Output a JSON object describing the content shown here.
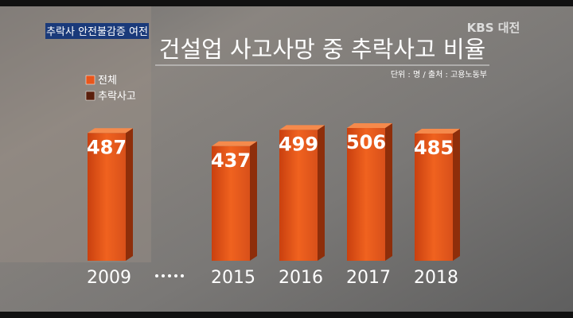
{
  "caption": "추락사 안전불감증 여전",
  "logo": "KBS 대전",
  "chart_data": {
    "type": "bar",
    "title": "건설업 사고사망 중 추락사고 비율",
    "note": "단위 : 명 / 출처 : 고용노동부",
    "categories": [
      "2009",
      "2015",
      "2016",
      "2017",
      "2018"
    ],
    "values": [
      487,
      437,
      499,
      506,
      485
    ],
    "color": "#e8561c",
    "legend": [
      {
        "name": "전체",
        "color": "#e8561c"
      },
      {
        "name": "추락사고",
        "color": "#5a1f0c"
      }
    ]
  }
}
